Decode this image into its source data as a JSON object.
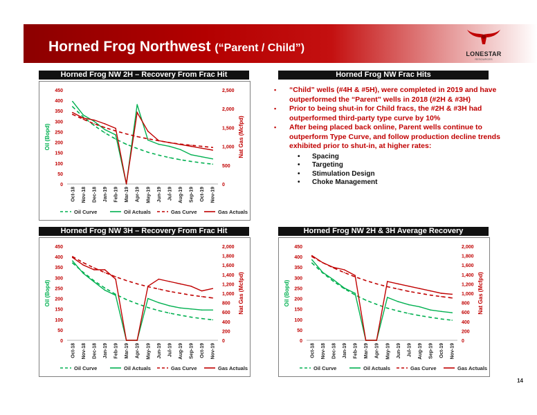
{
  "page": {
    "title": "Horned Frog Northwest",
    "subtitle": "(“Parent / Child”)",
    "page_number": "14"
  },
  "logo": {
    "word": "LONESTAR",
    "sub": "RESOURCES",
    "colors": {
      "horns": "#c00000",
      "text": "#222222"
    }
  },
  "colors": {
    "banner_dark": "#8c0000",
    "banner_mid": "#c41010",
    "oil": "#00b050",
    "gas": "#c00000",
    "oil_axis": "#00b050",
    "gas_axis": "#c00000"
  },
  "frac_hits": {
    "header": "Horned Frog NW Frac Hits",
    "bullets": [
      "“Child” wells (#4H & #5H), were completed in 2019 and have outperformed the “Parent” wells in 2018 (#2H & #3H)",
      "Prior to being shut-in for Child fracs, the #2H & #3H had outperformed third-party type curve by 10%",
      "After being placed back online, Parent wells continue to outperform Type Curve, and follow production decline trends exhibited prior to shut-in, at higher rates:"
    ],
    "sub_bullets": [
      "Spacing",
      "Targeting",
      "Stimulation Design",
      "Choke Management"
    ]
  },
  "chart_data": [
    {
      "header": "Horned Frog NW 2H – Recovery From Frac Hit",
      "type": "line",
      "x": [
        "Oct-18",
        "Nov-18",
        "Dec-18",
        "Jan-19",
        "Feb-19",
        "Mar-19",
        "Apr-19",
        "May-19",
        "Jun-19",
        "Jul-19",
        "Aug-19",
        "Sep-19",
        "Oct-19",
        "Nov-19"
      ],
      "ylabel": "Oil (Bopd)",
      "y2label": "Nat Gas (Mcfpd)",
      "ylim": [
        0,
        450
      ],
      "y2lim": [
        0,
        2500
      ],
      "yticks": [
        "0",
        "50",
        "100",
        "150",
        "200",
        "250",
        "300",
        "350",
        "400",
        "450"
      ],
      "y2ticks": [
        "0",
        "500",
        "1,000",
        "1,500",
        "2,000",
        "2,500"
      ],
      "legend": [
        "Oil Curve",
        "Oil Actuals",
        "Gas Curve",
        "Gas Actuals"
      ],
      "series": [
        {
          "name": "Oil Curve",
          "axis": "left",
          "values": [
            370,
            320,
            280,
            245,
            215,
            190,
            170,
            152,
            138,
            126,
            116,
            108,
            101,
            95
          ]
        },
        {
          "name": "Oil Actuals",
          "axis": "left",
          "values": [
            395,
            330,
            300,
            260,
            235,
            0,
            380,
            210,
            190,
            180,
            165,
            140,
            130,
            120
          ]
        },
        {
          "name": "Gas Curve",
          "axis": "right",
          "values": [
            1850,
            1720,
            1600,
            1500,
            1410,
            1330,
            1260,
            1200,
            1150,
            1100,
            1060,
            1030,
            1000,
            970
          ]
        },
        {
          "name": "Gas Actuals",
          "axis": "right",
          "values": [
            1900,
            1750,
            1700,
            1600,
            1480,
            0,
            1900,
            1400,
            1150,
            1100,
            1050,
            1000,
            950,
            900
          ]
        }
      ]
    },
    {
      "header": "Horned Frog NW 3H – Recovery From Frac Hit",
      "type": "line",
      "x": [
        "Oct-18",
        "Nov-18",
        "Dec-18",
        "Jan-19",
        "Feb-19",
        "Mar-19",
        "Apr-19",
        "May-19",
        "Jun-19",
        "Jul-19",
        "Aug-19",
        "Sep-19",
        "Oct-19",
        "Nov-19"
      ],
      "ylabel": "Oil (Bopd)",
      "y2label": "Nat Gas (Mcfpd)",
      "ylim": [
        0,
        450
      ],
      "y2lim": [
        0,
        2000
      ],
      "yticks": [
        "0",
        "50",
        "100",
        "150",
        "200",
        "250",
        "300",
        "350",
        "400",
        "450"
      ],
      "y2ticks": [
        "0",
        "200",
        "400",
        "600",
        "800",
        "1,000",
        "1,200",
        "1,400",
        "1,600",
        "1,800",
        "2,000"
      ],
      "legend": [
        "Oil Curve",
        "Oil Actuals",
        "Gas Curve",
        "Gas Actuals"
      ],
      "series": [
        {
          "name": "Oil Curve",
          "axis": "left",
          "values": [
            370,
            325,
            285,
            250,
            220,
            195,
            175,
            157,
            142,
            130,
            120,
            111,
            104,
            98
          ]
        },
        {
          "name": "Oil Actuals",
          "axis": "left",
          "values": [
            380,
            320,
            280,
            240,
            215,
            0,
            0,
            200,
            180,
            165,
            155,
            150,
            145,
            145
          ]
        },
        {
          "name": "Gas Curve",
          "axis": "right",
          "values": [
            1780,
            1650,
            1540,
            1440,
            1350,
            1270,
            1200,
            1140,
            1090,
            1040,
            1000,
            960,
            930,
            900
          ]
        },
        {
          "name": "Gas Actuals",
          "axis": "right",
          "values": [
            1760,
            1600,
            1500,
            1500,
            1300,
            0,
            0,
            1150,
            1300,
            1250,
            1200,
            1150,
            1050,
            1100
          ]
        }
      ]
    },
    {
      "header": "Horned Frog NW 2H & 3H Average Recovery",
      "type": "line",
      "x": [
        "Oct-18",
        "Nov-18",
        "Dec-18",
        "Jan-19",
        "Feb-19",
        "Mar-19",
        "Apr-19",
        "May-19",
        "Jun-19",
        "Jul-19",
        "Aug-19",
        "Sep-19",
        "Oct-19",
        "Nov-19"
      ],
      "ylabel": "Oil (Bopd)",
      "y2label": "Nat Gas (Mcfpd)",
      "ylim": [
        0,
        450
      ],
      "y2lim": [
        0,
        2000
      ],
      "yticks": [
        "0",
        "50",
        "100",
        "150",
        "200",
        "250",
        "300",
        "350",
        "400",
        "450"
      ],
      "y2ticks": [
        "0",
        "200",
        "400",
        "600",
        "800",
        "1,000",
        "1,200",
        "1,400",
        "1,600",
        "1,800",
        "2,000"
      ],
      "legend": [
        "Oil Curve",
        "Oil Actuals",
        "Gas Curve",
        "Gas Actuals"
      ],
      "series": [
        {
          "name": "Oil Curve",
          "axis": "left",
          "values": [
            370,
            322,
            282,
            247,
            217,
            192,
            172,
            154,
            140,
            128,
            118,
            110,
            102,
            96
          ]
        },
        {
          "name": "Oil Actuals",
          "axis": "left",
          "values": [
            385,
            325,
            290,
            250,
            225,
            0,
            0,
            205,
            185,
            170,
            160,
            145,
            138,
            132
          ]
        },
        {
          "name": "Gas Curve",
          "axis": "right",
          "values": [
            1780,
            1650,
            1540,
            1440,
            1350,
            1270,
            1200,
            1140,
            1090,
            1040,
            1000,
            960,
            930,
            900
          ]
        },
        {
          "name": "Gas Actuals",
          "axis": "right",
          "values": [
            1800,
            1650,
            1550,
            1500,
            1380,
            0,
            0,
            1250,
            1200,
            1150,
            1100,
            1050,
            1000,
            980
          ]
        }
      ]
    }
  ]
}
